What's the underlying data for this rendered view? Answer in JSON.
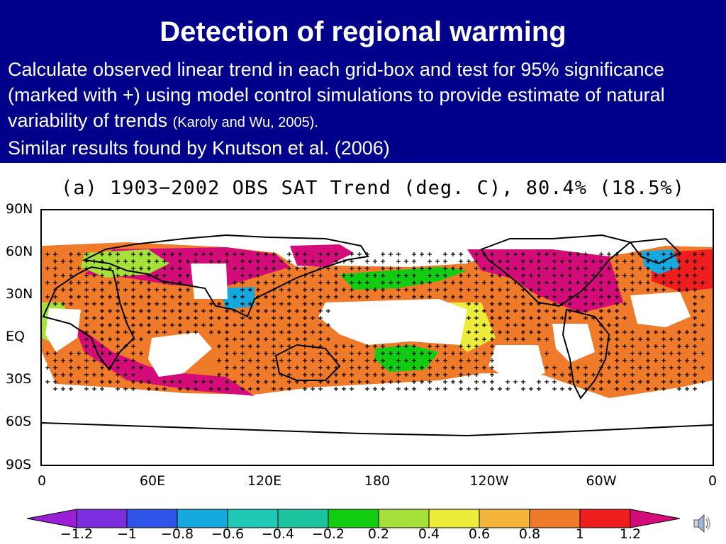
{
  "slide": {
    "title": "Detection of regional warming",
    "body_main": "Calculate observed linear trend in each grid-box and test for 95% significance (marked with +) using model control simulations to provide estimate of natural variability of trends ",
    "body_citation": "(Karoly and Wu, 2005).",
    "body_second": "Similar results found by Knutson et al. (2006)"
  },
  "map": {
    "title": "(a) 1903−2002 OBS SAT Trend (deg. C), 80.4% (18.5%)",
    "lat_labels": [
      "90N",
      "60N",
      "30N",
      "EQ",
      "30S",
      "60S",
      "90S"
    ],
    "lon_labels": [
      "0",
      "60E",
      "120E",
      "180",
      "120W",
      "60W",
      "0"
    ],
    "significance_marker": "+"
  },
  "colorbar": {
    "labels": [
      "−1.2",
      "−1",
      "−0.8",
      "−0.6",
      "−0.4",
      "−0.2",
      "0.2",
      "0.4",
      "0.6",
      "0.8",
      "1",
      "1.2"
    ],
    "colors": [
      "#9a1fd6",
      "#7a2ee0",
      "#2f55e8",
      "#16a9e0",
      "#1fc9b6",
      "#1bc39e",
      "#12cc12",
      "#a6e03a",
      "#ecec3a",
      "#f5b43a",
      "#ef7a2a",
      "#ee1e1e",
      "#d40c7a"
    ]
  },
  "icons": {
    "speaker": "speaker-icon"
  }
}
